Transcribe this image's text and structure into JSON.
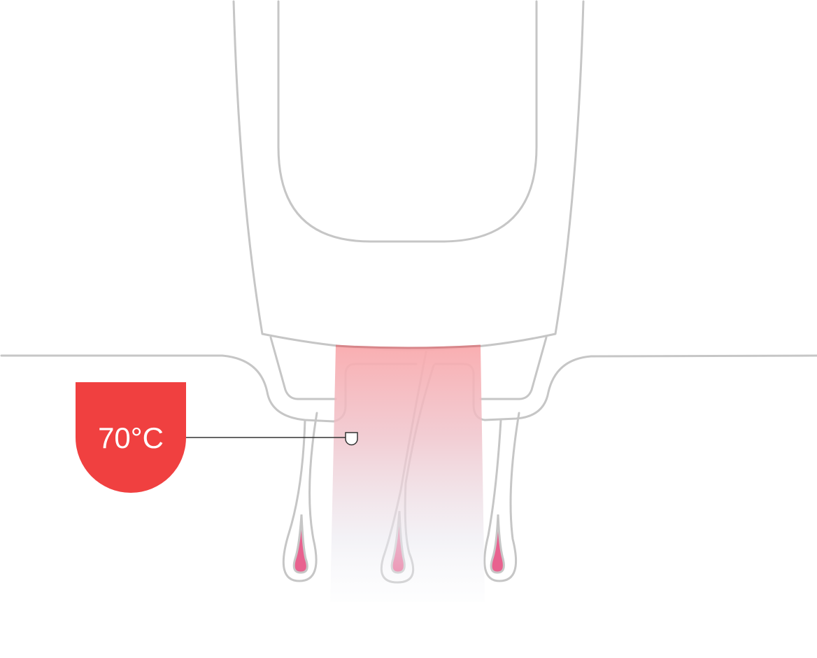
{
  "temperature_badge": {
    "label": "70°C",
    "color": "#f04040",
    "text_color": "#ffffff"
  },
  "colors": {
    "outline": "#c6c6c6",
    "light_beam_top": "#f9aaad",
    "light_beam_bottom": "#f4f5fa",
    "hair_bulb": "#e8628f",
    "pointer_line": "#333333"
  }
}
